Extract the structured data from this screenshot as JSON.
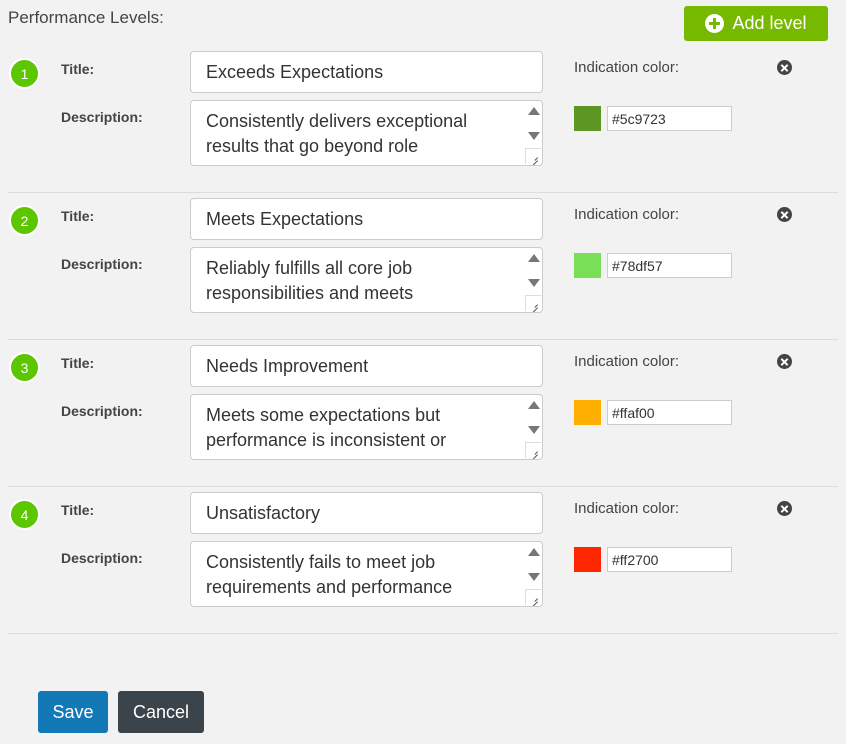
{
  "header": {
    "title": "Performance Levels:",
    "add_level_label": "Add level"
  },
  "labels": {
    "title": "Title:",
    "description": "Description:",
    "indication_color": "Indication color:"
  },
  "levels": [
    {
      "number": "1",
      "title": "Exceeds Expectations",
      "description": "Consistently delivers exceptional results that go beyond role",
      "color": "#5c9723"
    },
    {
      "number": "2",
      "title": "Meets Expectations",
      "description": "Reliably fulfills all core job responsibilities and meets",
      "color": "#78df57"
    },
    {
      "number": "3",
      "title": "Needs Improvement",
      "description": "Meets some expectations but performance is inconsistent or",
      "color": "#ffaf00"
    },
    {
      "number": "4",
      "title": "Unsatisfactory",
      "description": "Consistently fails to meet job requirements and performance",
      "color": "#ff2700"
    }
  ],
  "footer": {
    "save_label": "Save",
    "cancel_label": "Cancel"
  }
}
